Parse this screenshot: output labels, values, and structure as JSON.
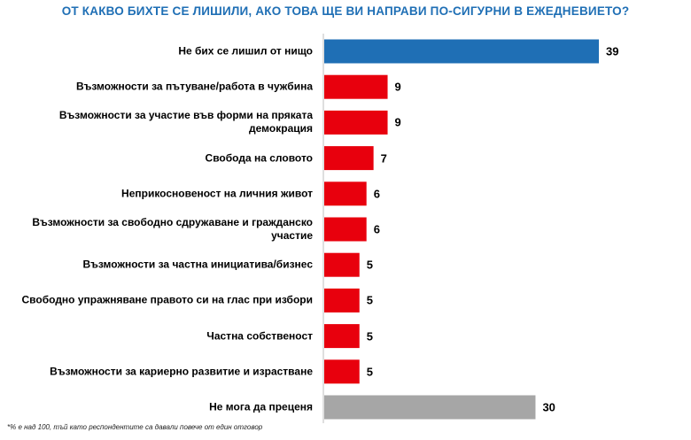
{
  "chart_data": {
    "type": "bar",
    "orientation": "horizontal",
    "title": "ОТ КАКВО БИХТЕ СЕ ЛИШИЛИ, АКО ТОВА ЩЕ ВИ НАПРАВИ ПО-СИГУРНИ В ЕЖЕДНЕВИЕТО?",
    "categories": [
      "Не бих се лишил от нищо",
      "Възможности за пътуване/работа в чужбина",
      "Възможности за участие във форми на пряката демокрация",
      "Свобода на словото",
      "Неприкосновеност на личния живот",
      "Възможности за свободно сдружаване и гражданско участие",
      "Възможности за частна инициатива/бизнес",
      "Свободно упражняване правото си на глас при избори",
      "Частна собственост",
      "Възможности за кариерно развитие и израстване",
      "Не мога да преценя"
    ],
    "values": [
      39,
      9,
      9,
      7,
      6,
      6,
      5,
      5,
      5,
      5,
      30
    ],
    "value_labels": [
      "39",
      "9",
      "9",
      "7",
      "6",
      "6",
      "5",
      "5",
      "5",
      "5",
      "30"
    ],
    "bar_colors": [
      "#1f6fb5",
      "#e8000d",
      "#e8000d",
      "#e8000d",
      "#e8000d",
      "#e8000d",
      "#e8000d",
      "#e8000d",
      "#e8000d",
      "#e8000d",
      "#a6a6a6"
    ],
    "xlim": [
      0,
      39
    ],
    "grid": false,
    "legend": "none"
  },
  "footnote": "*% е над 100, тъй като респондентите са давали повече от един отговор"
}
